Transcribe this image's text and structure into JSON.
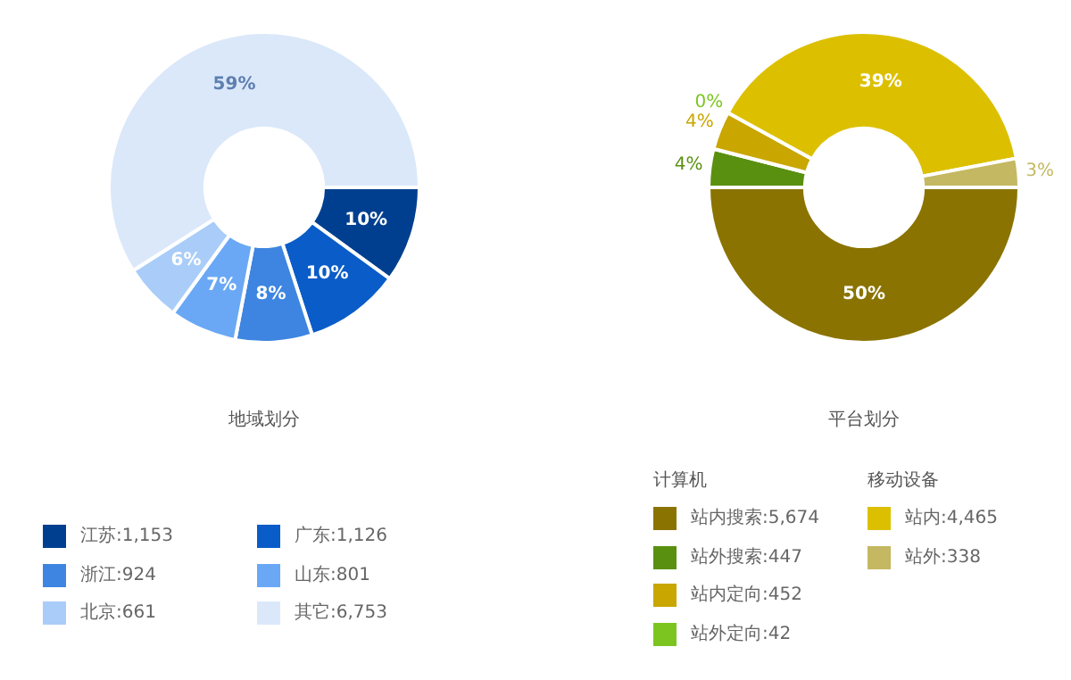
{
  "chart_data": [
    {
      "type": "donut",
      "title": "地域划分",
      "categories": [
        "江苏:1,153",
        "广东:1,126",
        "浙江:924",
        "山东:801",
        "北京:661",
        "其它:6,753"
      ],
      "values": [
        10,
        10,
        8,
        7,
        6,
        59
      ],
      "colors": [
        "#003f8f",
        "#0a5cc8",
        "#3d85e0",
        "#6aa8f5",
        "#a9cdf8",
        "#dbe8fa"
      ],
      "value_labels": [
        "10%",
        "10%",
        "8%",
        "7%",
        "6%",
        "59%"
      ],
      "legend": "bottom"
    },
    {
      "type": "donut",
      "title": "平台划分",
      "categories": [
        "站内搜索:5,674",
        "站外搜索:447",
        "站内定向:452",
        "站外定向:42",
        "站内:4,465",
        "站外:338"
      ],
      "values": [
        50,
        4,
        4,
        0,
        39,
        3
      ],
      "colors": [
        "#8a7300",
        "#5a9010",
        "#c9a600",
        "#7cc520",
        "#dcc000",
        "#c4b862"
      ],
      "value_labels": [
        "50%",
        "4%",
        "4%",
        "0%",
        "39%",
        "3%"
      ],
      "legend": "bottom",
      "annotations": [
        {
          "text": "计算机",
          "x": "站内搜索:5,674"
        },
        {
          "text": "移动设备",
          "x": "站内:4,465"
        }
      ]
    }
  ]
}
